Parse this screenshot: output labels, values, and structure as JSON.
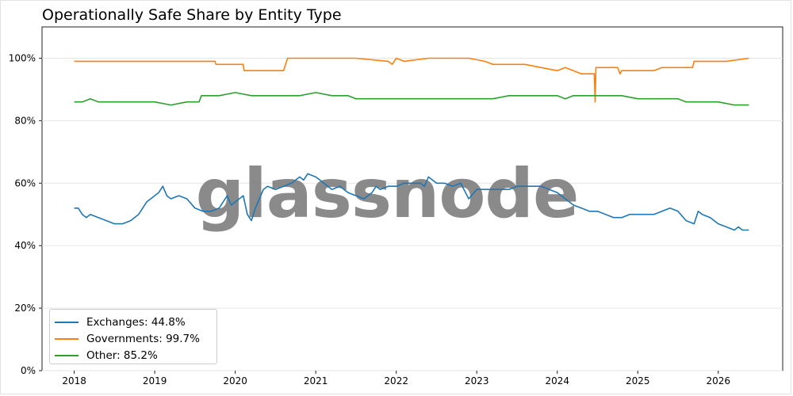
{
  "title": "Operationally Safe Share by Entity Type",
  "watermark": "glassnode",
  "chart_data": {
    "type": "line",
    "title": "Operationally Safe Share by Entity Type",
    "xlabel": "",
    "ylabel": "",
    "x_ticks": [
      "2018",
      "2019",
      "2020",
      "2021",
      "2022",
      "2023",
      "2024",
      "2025",
      "2026"
    ],
    "y_ticks": [
      "0%",
      "20%",
      "40%",
      "60%",
      "80%",
      "100%"
    ],
    "ylim": [
      0,
      110
    ],
    "xlim": [
      2017.6,
      2026.8
    ],
    "grid": "horizontal",
    "legend_position": "bottom-left",
    "series": [
      {
        "name": "Exchanges: 44.8%",
        "color": "#1f77b4",
        "points": [
          [
            2018.0,
            52
          ],
          [
            2018.05,
            52
          ],
          [
            2018.1,
            50
          ],
          [
            2018.15,
            49
          ],
          [
            2018.2,
            50
          ],
          [
            2018.3,
            49
          ],
          [
            2018.4,
            48
          ],
          [
            2018.5,
            47
          ],
          [
            2018.6,
            47
          ],
          [
            2018.7,
            48
          ],
          [
            2018.8,
            50
          ],
          [
            2018.9,
            54
          ],
          [
            2019.0,
            56
          ],
          [
            2019.05,
            57
          ],
          [
            2019.1,
            59
          ],
          [
            2019.15,
            56
          ],
          [
            2019.2,
            55
          ],
          [
            2019.3,
            56
          ],
          [
            2019.4,
            55
          ],
          [
            2019.5,
            52
          ],
          [
            2019.6,
            51
          ],
          [
            2019.7,
            51
          ],
          [
            2019.8,
            52
          ],
          [
            2019.9,
            56
          ],
          [
            2019.95,
            53
          ],
          [
            2020.0,
            54
          ],
          [
            2020.1,
            56
          ],
          [
            2020.15,
            50
          ],
          [
            2020.2,
            48
          ],
          [
            2020.25,
            52
          ],
          [
            2020.3,
            55
          ],
          [
            2020.35,
            58
          ],
          [
            2020.4,
            59
          ],
          [
            2020.5,
            58
          ],
          [
            2020.6,
            59
          ],
          [
            2020.7,
            60
          ],
          [
            2020.8,
            62
          ],
          [
            2020.85,
            61
          ],
          [
            2020.9,
            63
          ],
          [
            2021.0,
            62
          ],
          [
            2021.05,
            61
          ],
          [
            2021.1,
            60
          ],
          [
            2021.2,
            58
          ],
          [
            2021.3,
            59
          ],
          [
            2021.4,
            57
          ],
          [
            2021.5,
            56
          ],
          [
            2021.6,
            55
          ],
          [
            2021.7,
            57
          ],
          [
            2021.75,
            59
          ],
          [
            2021.8,
            58
          ],
          [
            2021.9,
            59
          ],
          [
            2022.0,
            59
          ],
          [
            2022.1,
            60
          ],
          [
            2022.2,
            60
          ],
          [
            2022.3,
            60
          ],
          [
            2022.35,
            59
          ],
          [
            2022.4,
            62
          ],
          [
            2022.5,
            60
          ],
          [
            2022.6,
            60
          ],
          [
            2022.7,
            59
          ],
          [
            2022.8,
            60
          ],
          [
            2022.9,
            55
          ],
          [
            2023.0,
            58
          ],
          [
            2023.1,
            58
          ],
          [
            2023.2,
            58
          ],
          [
            2023.3,
            58
          ],
          [
            2023.4,
            58
          ],
          [
            2023.5,
            59
          ],
          [
            2023.6,
            59
          ],
          [
            2023.7,
            59
          ],
          [
            2023.8,
            59
          ],
          [
            2023.9,
            58
          ],
          [
            2024.0,
            57
          ],
          [
            2024.1,
            55
          ],
          [
            2024.2,
            53
          ],
          [
            2024.3,
            52
          ],
          [
            2024.4,
            51
          ],
          [
            2024.5,
            51
          ],
          [
            2024.6,
            50
          ],
          [
            2024.7,
            49
          ],
          [
            2024.8,
            49
          ],
          [
            2024.9,
            50
          ],
          [
            2025.0,
            50
          ],
          [
            2025.1,
            50
          ],
          [
            2025.2,
            50
          ],
          [
            2025.3,
            51
          ],
          [
            2025.4,
            52
          ],
          [
            2025.5,
            51
          ],
          [
            2025.6,
            48
          ],
          [
            2025.7,
            47
          ],
          [
            2025.75,
            51
          ],
          [
            2025.8,
            50
          ],
          [
            2025.9,
            49
          ],
          [
            2026.0,
            47
          ],
          [
            2026.1,
            46
          ],
          [
            2026.2,
            45
          ],
          [
            2026.25,
            46
          ],
          [
            2026.3,
            45
          ],
          [
            2026.38,
            45
          ]
        ]
      },
      {
        "name": "Governments: 99.7%",
        "color": "#ff7f0e",
        "points": [
          [
            2018.0,
            99
          ],
          [
            2018.5,
            99
          ],
          [
            2019.0,
            99
          ],
          [
            2019.5,
            99
          ],
          [
            2019.75,
            99
          ],
          [
            2019.76,
            98
          ],
          [
            2020.1,
            98
          ],
          [
            2020.11,
            96
          ],
          [
            2020.6,
            96
          ],
          [
            2020.65,
            100
          ],
          [
            2021.0,
            100
          ],
          [
            2021.5,
            100
          ],
          [
            2021.9,
            99
          ],
          [
            2021.95,
            98
          ],
          [
            2022.0,
            100
          ],
          [
            2022.1,
            99
          ],
          [
            2022.4,
            100
          ],
          [
            2022.6,
            100
          ],
          [
            2022.9,
            100
          ],
          [
            2023.1,
            99
          ],
          [
            2023.2,
            98
          ],
          [
            2023.4,
            98
          ],
          [
            2023.6,
            98
          ],
          [
            2023.8,
            97
          ],
          [
            2024.0,
            96
          ],
          [
            2024.1,
            97
          ],
          [
            2024.2,
            96
          ],
          [
            2024.3,
            95
          ],
          [
            2024.46,
            95
          ],
          [
            2024.47,
            86
          ],
          [
            2024.48,
            97
          ],
          [
            2024.6,
            97
          ],
          [
            2024.75,
            97
          ],
          [
            2024.78,
            95
          ],
          [
            2024.8,
            96
          ],
          [
            2025.0,
            96
          ],
          [
            2025.1,
            96
          ],
          [
            2025.2,
            96
          ],
          [
            2025.3,
            97
          ],
          [
            2025.5,
            97
          ],
          [
            2025.68,
            97
          ],
          [
            2025.7,
            99
          ],
          [
            2025.9,
            99
          ],
          [
            2026.1,
            99
          ],
          [
            2026.38,
            100
          ]
        ]
      },
      {
        "name": "Other: 85.2%",
        "color": "#2ca02c",
        "points": [
          [
            2018.0,
            86
          ],
          [
            2018.1,
            86
          ],
          [
            2018.2,
            87
          ],
          [
            2018.3,
            86
          ],
          [
            2018.4,
            86
          ],
          [
            2018.6,
            86
          ],
          [
            2018.8,
            86
          ],
          [
            2019.0,
            86
          ],
          [
            2019.2,
            85
          ],
          [
            2019.4,
            86
          ],
          [
            2019.55,
            86
          ],
          [
            2019.58,
            88
          ],
          [
            2019.8,
            88
          ],
          [
            2020.0,
            89
          ],
          [
            2020.2,
            88
          ],
          [
            2020.4,
            88
          ],
          [
            2020.6,
            88
          ],
          [
            2020.8,
            88
          ],
          [
            2021.0,
            89
          ],
          [
            2021.2,
            88
          ],
          [
            2021.4,
            88
          ],
          [
            2021.5,
            87
          ],
          [
            2021.7,
            87
          ],
          [
            2022.0,
            87
          ],
          [
            2022.2,
            87
          ],
          [
            2022.4,
            87
          ],
          [
            2022.6,
            87
          ],
          [
            2022.8,
            87
          ],
          [
            2023.0,
            87
          ],
          [
            2023.2,
            87
          ],
          [
            2023.4,
            88
          ],
          [
            2023.6,
            88
          ],
          [
            2023.8,
            88
          ],
          [
            2024.0,
            88
          ],
          [
            2024.1,
            87
          ],
          [
            2024.2,
            88
          ],
          [
            2024.4,
            88
          ],
          [
            2024.6,
            88
          ],
          [
            2024.8,
            88
          ],
          [
            2025.0,
            87
          ],
          [
            2025.2,
            87
          ],
          [
            2025.4,
            87
          ],
          [
            2025.5,
            87
          ],
          [
            2025.6,
            86
          ],
          [
            2025.8,
            86
          ],
          [
            2026.0,
            86
          ],
          [
            2026.2,
            85
          ],
          [
            2026.38,
            85
          ]
        ]
      }
    ]
  },
  "legend": {
    "items": [
      {
        "label": "Exchanges: 44.8%",
        "color": "#1f77b4"
      },
      {
        "label": "Governments: 99.7%",
        "color": "#ff7f0e"
      },
      {
        "label": "Other: 85.2%",
        "color": "#2ca02c"
      }
    ]
  }
}
